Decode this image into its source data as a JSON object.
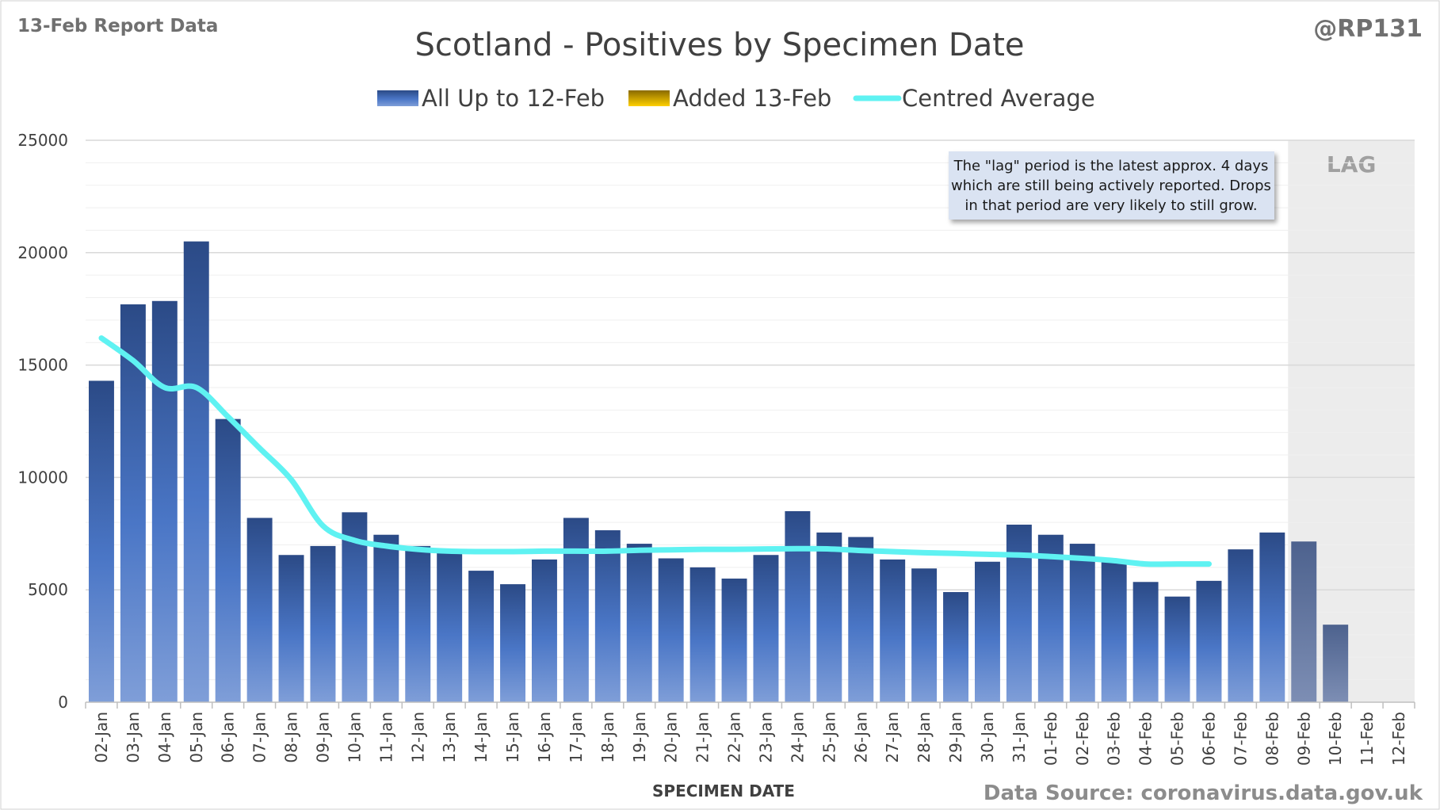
{
  "header": {
    "report_label": "13-Feb Report Data",
    "handle": "@RP131",
    "source": "Data Source: coronavirus.data.gov.uk"
  },
  "colors": {
    "bar_top": "#2b4a86",
    "bar_mid": "#4a76c6",
    "bar_bottom": "#7f9ed8",
    "added_top": "#8a6a00",
    "added_bottom": "#ffd000",
    "average": "#5ff2f2",
    "lag_bg": "#ececec",
    "grid": "#d9d9d9",
    "note_bg": "#dae3f2"
  },
  "lag_label": "LAG",
  "lag_note": {
    "lines": [
      "The \"lag\" period is the latest approx. 4 days",
      "which are still being actively reported. Drops",
      "in that period are very likely to still grow."
    ]
  },
  "chart_data": {
    "type": "bar",
    "title": "Scotland - Positives by Specimen Date",
    "xlabel": "SPECIMEN DATE",
    "ylabel": "",
    "ylim": [
      0,
      25000
    ],
    "yticks": [
      0,
      5000,
      10000,
      15000,
      20000,
      25000
    ],
    "legend": {
      "placement": "top",
      "entries": [
        "All Up to 12-Feb",
        "Added 13-Feb",
        "Centred Average"
      ]
    },
    "categories": [
      "02-Jan",
      "03-Jan",
      "04-Jan",
      "05-Jan",
      "06-Jan",
      "07-Jan",
      "08-Jan",
      "09-Jan",
      "10-Jan",
      "11-Jan",
      "12-Jan",
      "13-Jan",
      "14-Jan",
      "15-Jan",
      "16-Jan",
      "17-Jan",
      "18-Jan",
      "19-Jan",
      "20-Jan",
      "21-Jan",
      "22-Jan",
      "23-Jan",
      "24-Jan",
      "25-Jan",
      "26-Jan",
      "27-Jan",
      "28-Jan",
      "29-Jan",
      "30-Jan",
      "31-Jan",
      "01-Feb",
      "02-Feb",
      "03-Feb",
      "04-Feb",
      "05-Feb",
      "06-Feb",
      "07-Feb",
      "08-Feb",
      "09-Feb",
      "10-Feb",
      "11-Feb",
      "12-Feb"
    ],
    "lag_categories": [
      "09-Feb",
      "10-Feb",
      "11-Feb",
      "12-Feb"
    ],
    "series": [
      {
        "name": "All Up to 12-Feb",
        "type": "bar",
        "values": [
          14300,
          17700,
          17850,
          20500,
          12600,
          8200,
          6550,
          6950,
          8450,
          7450,
          6950,
          6650,
          5850,
          5250,
          6350,
          8200,
          7650,
          7050,
          6400,
          6000,
          5500,
          6550,
          8500,
          7550,
          7350,
          6350,
          5950,
          4900,
          6250,
          7900,
          7450,
          7050,
          6250,
          5350,
          4700,
          5400,
          6800,
          7550,
          7150,
          3450,
          0,
          0
        ]
      },
      {
        "name": "Added 13-Feb",
        "type": "bar",
        "values": [
          0,
          0,
          0,
          0,
          0,
          0,
          0,
          0,
          0,
          0,
          0,
          0,
          0,
          0,
          0,
          0,
          0,
          0,
          0,
          0,
          0,
          0,
          0,
          0,
          0,
          0,
          0,
          0,
          0,
          0,
          0,
          0,
          0,
          0,
          0,
          0,
          0,
          0,
          0,
          0,
          0,
          0
        ]
      },
      {
        "name": "Centred Average",
        "type": "line",
        "values": [
          16200,
          15200,
          14000,
          14000,
          12700,
          11300,
          9900,
          7850,
          7200,
          6950,
          6800,
          6720,
          6700,
          6700,
          6720,
          6720,
          6720,
          6760,
          6780,
          6800,
          6800,
          6820,
          6830,
          6820,
          6750,
          6700,
          6650,
          6620,
          6580,
          6550,
          6480,
          6400,
          6300,
          6150,
          6150,
          6150,
          null,
          null,
          null,
          null,
          null,
          null
        ]
      }
    ]
  }
}
